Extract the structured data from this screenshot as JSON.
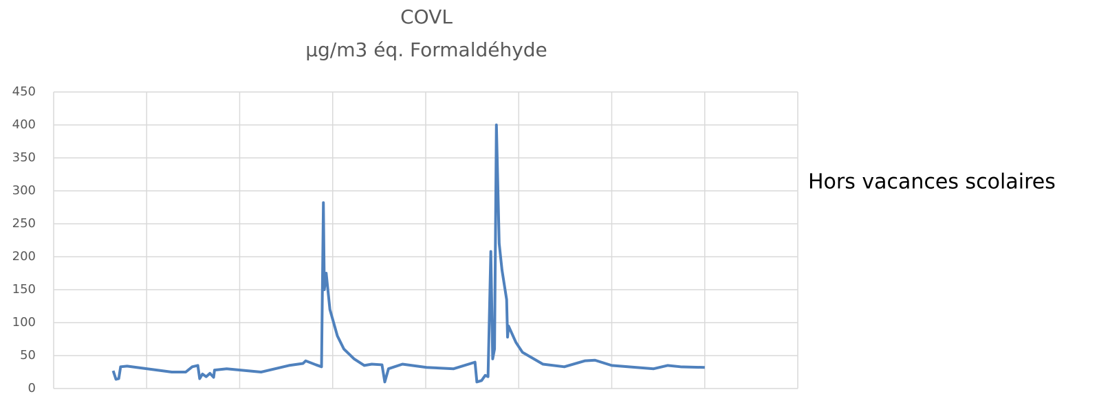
{
  "chart_data": {
    "type": "line",
    "title": "COVL",
    "subtitle": "µg/m3 éq. Formaldéhyde",
    "annotation": "Hors vacances scolaires",
    "color": "#4f81bd",
    "grid": true,
    "xlim": [
      0,
      8
    ],
    "ylim": [
      0,
      450
    ],
    "yticks": [
      0,
      50,
      100,
      150,
      200,
      250,
      300,
      350,
      400,
      450
    ],
    "x": [
      0.64,
      0.67,
      0.7,
      0.72,
      0.79,
      1.27,
      1.42,
      1.49,
      1.55,
      1.57,
      1.6,
      1.64,
      1.68,
      1.72,
      1.73,
      1.86,
      2.23,
      2.53,
      2.68,
      2.71,
      2.82,
      2.88,
      2.9,
      2.91,
      2.93,
      2.97,
      3.05,
      3.12,
      3.23,
      3.34,
      3.42,
      3.53,
      3.56,
      3.6,
      3.75,
      4.01,
      4.3,
      4.53,
      4.55,
      4.6,
      4.64,
      4.67,
      4.7,
      4.72,
      4.74,
      4.76,
      4.79,
      4.82,
      4.87,
      4.88,
      4.89,
      4.97,
      5.04,
      5.26,
      5.49,
      5.71,
      5.82,
      6.0,
      6.45,
      6.6,
      6.74,
      7.0
    ],
    "values": [
      27,
      14,
      15,
      33,
      34,
      25,
      25,
      33,
      35,
      15,
      22,
      18,
      23,
      17,
      28,
      30,
      25,
      35,
      38,
      42,
      36,
      33,
      282,
      150,
      175,
      120,
      80,
      60,
      45,
      35,
      37,
      36,
      10,
      30,
      37,
      32,
      30,
      40,
      10,
      12,
      20,
      18,
      208,
      45,
      60,
      400,
      220,
      180,
      135,
      78,
      95,
      70,
      55,
      37,
      33,
      42,
      43,
      35,
      30,
      35,
      33,
      32
    ]
  }
}
